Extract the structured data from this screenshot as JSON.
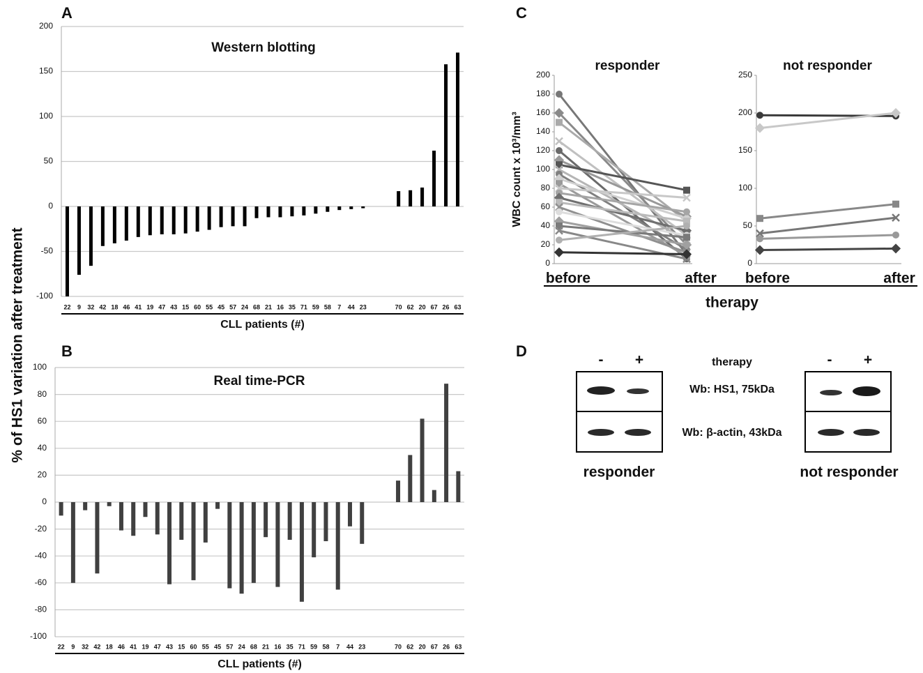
{
  "ylabel": "% of HS1 variation after treatment",
  "chart_data": [
    {
      "type": "bar",
      "letter": "A",
      "title": "Western blotting",
      "xlabel": "CLL patients (#)",
      "categories": [
        "22",
        "9",
        "32",
        "42",
        "18",
        "46",
        "41",
        "19",
        "47",
        "43",
        "15",
        "60",
        "55",
        "45",
        "57",
        "24",
        "68",
        "21",
        "16",
        "35",
        "71",
        "59",
        "58",
        "7",
        "44",
        "23",
        null,
        null,
        "70",
        "62",
        "20",
        "67",
        "26",
        "63"
      ],
      "values": [
        -100,
        -76,
        -66,
        -44,
        -41,
        -38,
        -34,
        -32,
        -31,
        -31,
        -30,
        -28,
        -26,
        -23,
        -22,
        -22,
        -13,
        -12,
        -12,
        -11,
        -10,
        -8,
        -6,
        -4,
        -3,
        -2,
        null,
        null,
        17,
        18,
        21,
        62,
        158,
        171
      ],
      "color": "#000000",
      "ylim": [
        -100,
        200
      ],
      "yticks": [
        -100,
        -50,
        0,
        50,
        100,
        150,
        200
      ],
      "grid": true
    },
    {
      "type": "bar",
      "letter": "B",
      "title": "Real time-PCR",
      "xlabel": "CLL patients (#)",
      "categories": [
        "22",
        "9",
        "32",
        "42",
        "18",
        "46",
        "41",
        "19",
        "47",
        "43",
        "15",
        "60",
        "55",
        "45",
        "57",
        "24",
        "68",
        "21",
        "16",
        "35",
        "71",
        "59",
        "58",
        "7",
        "44",
        "23",
        null,
        null,
        "70",
        "62",
        "20",
        "67",
        "26",
        "63"
      ],
      "values": [
        -10,
        -60,
        -6,
        -53,
        -3,
        -21,
        -25,
        -11,
        -24,
        -61,
        -28,
        -58,
        -30,
        -5,
        -64,
        -68,
        -60,
        -26,
        -63,
        -28,
        -74,
        -41,
        -29,
        -65,
        -18,
        -31,
        null,
        null,
        16,
        35,
        62,
        9,
        88,
        23
      ],
      "color": "#404040",
      "ylim": [
        -100,
        100
      ],
      "yticks": [
        -100,
        -80,
        -60,
        -40,
        -20,
        0,
        20,
        40,
        60,
        80,
        100
      ],
      "grid": true
    },
    {
      "type": "line",
      "title": "responder",
      "categories": [
        "before",
        "after"
      ],
      "ylim": [
        0,
        200
      ],
      "yticks": [
        0,
        20,
        40,
        60,
        80,
        100,
        120,
        140,
        160,
        180,
        200
      ],
      "series": [
        {
          "color": "#777777",
          "values": [
            180,
            10
          ]
        },
        {
          "color": "#8a8a8a",
          "values": [
            160,
            20
          ]
        },
        {
          "color": "#aaaaaa",
          "values": [
            150,
            45
          ]
        },
        {
          "color": "#c0c0c0",
          "values": [
            130,
            30
          ]
        },
        {
          "color": "#6a6a6a",
          "values": [
            120,
            5
          ]
        },
        {
          "color": "#999999",
          "values": [
            110,
            50
          ]
        },
        {
          "color": "#555555",
          "values": [
            105,
            78
          ]
        },
        {
          "color": "#b5b5b5",
          "values": [
            100,
            25
          ]
        },
        {
          "color": "#808080",
          "values": [
            95,
            15
          ]
        },
        {
          "color": "#d0d0d0",
          "values": [
            90,
            48
          ]
        },
        {
          "color": "#9a9a9a",
          "values": [
            85,
            8
          ]
        },
        {
          "color": "#c8c8c8",
          "values": [
            80,
            70
          ]
        },
        {
          "color": "#a5a5a5",
          "values": [
            75,
            55
          ]
        },
        {
          "color": "#6f6f6f",
          "values": [
            70,
            35
          ]
        },
        {
          "color": "#bbbbbb",
          "values": [
            65,
            45
          ]
        },
        {
          "color": "#909090",
          "values": [
            60,
            12
          ]
        },
        {
          "color": "#dddddd",
          "values": [
            55,
            30
          ]
        },
        {
          "color": "#a0a0a0",
          "values": [
            45,
            20
          ]
        },
        {
          "color": "#7a7a7a",
          "values": [
            40,
            28
          ]
        },
        {
          "color": "#888888",
          "values": [
            35,
            5
          ]
        },
        {
          "color": "#b0b0b0",
          "values": [
            25,
            40
          ]
        },
        {
          "color": "#333333",
          "values": [
            12,
            10
          ]
        }
      ]
    },
    {
      "type": "line",
      "title": "not responder",
      "categories": [
        "before",
        "after"
      ],
      "ylim": [
        0,
        250
      ],
      "yticks": [
        0,
        50,
        100,
        150,
        200,
        250
      ],
      "series": [
        {
          "color": "#3a3a3a",
          "values": [
            197,
            196
          ]
        },
        {
          "color": "#c8c8c8",
          "values": [
            180,
            200
          ]
        },
        {
          "color": "#888888",
          "values": [
            60,
            79
          ]
        },
        {
          "color": "#777777",
          "values": [
            40,
            61
          ]
        },
        {
          "color": "#999999",
          "values": [
            33,
            38
          ]
        },
        {
          "color": "#444444",
          "values": [
            18,
            20
          ]
        }
      ]
    }
  ],
  "panel_c": {
    "letter": "C",
    "ylabel": "WBC count x 10³/mm³",
    "xlabel": "therapy"
  },
  "panel_d": {
    "letter": "D",
    "treatment_labels": [
      "-",
      "+"
    ],
    "therapy_label": "therapy",
    "rows": [
      "Wb: HS1, 75kDa",
      "Wb: β-actin, 43kDa"
    ],
    "groups": [
      "responder",
      "not responder"
    ]
  }
}
